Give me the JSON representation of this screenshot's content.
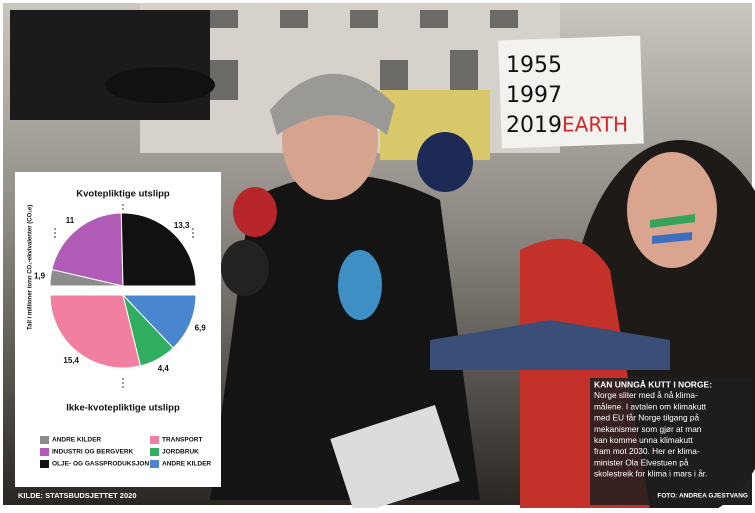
{
  "chart_data": {
    "type": "pie",
    "axis_label": "Tall i millioner tonn CO₂-ekvivalenter (CO₂e)",
    "source": "KILDE: STATSBUDSJETTET 2020",
    "series": [
      {
        "name": "Kvotepliktige utslipp",
        "categories": [
          "ANDRE KILDER",
          "INDUSTRI OG BERGVERK",
          "OLJE- OG GASSPRODUKSJON"
        ],
        "colors": [
          "#8c8c8c",
          "#b05bb5",
          "#111111"
        ],
        "values": [
          1.9,
          11,
          13.3
        ],
        "value_labels": [
          "1,9",
          "11",
          "13,3"
        ]
      },
      {
        "name": "Ikke-kvotepliktige utslipp",
        "categories": [
          "TRANSPORT",
          "JORDBRUK",
          "ANDRE KILDER"
        ],
        "colors": [
          "#f07fa0",
          "#2fae5f",
          "#4a86d0"
        ],
        "values": [
          15.4,
          4.4,
          6.9
        ],
        "value_labels": [
          "15,4",
          "4,4",
          "6,9"
        ]
      }
    ]
  },
  "caption": {
    "title": "KAN UNNGÅ KUTT I NORGE:",
    "lines": [
      "Norge sliter med å nå klima-",
      "målene. I avtalen om klimakutt",
      "med EU får Norge tilgang på",
      "mekanismer som gjør at man",
      "kan komme unna klimakutt",
      "fram mot 2030. Her er klima-",
      "minister Ola Elvestuen på",
      "skolestreik for klima i mars i år."
    ],
    "credit": "FOTO: ANDREA GJESTVANG"
  },
  "sign": {
    "lines": [
      "1955",
      "1997",
      "2019"
    ],
    "highlight": "EARTH"
  }
}
